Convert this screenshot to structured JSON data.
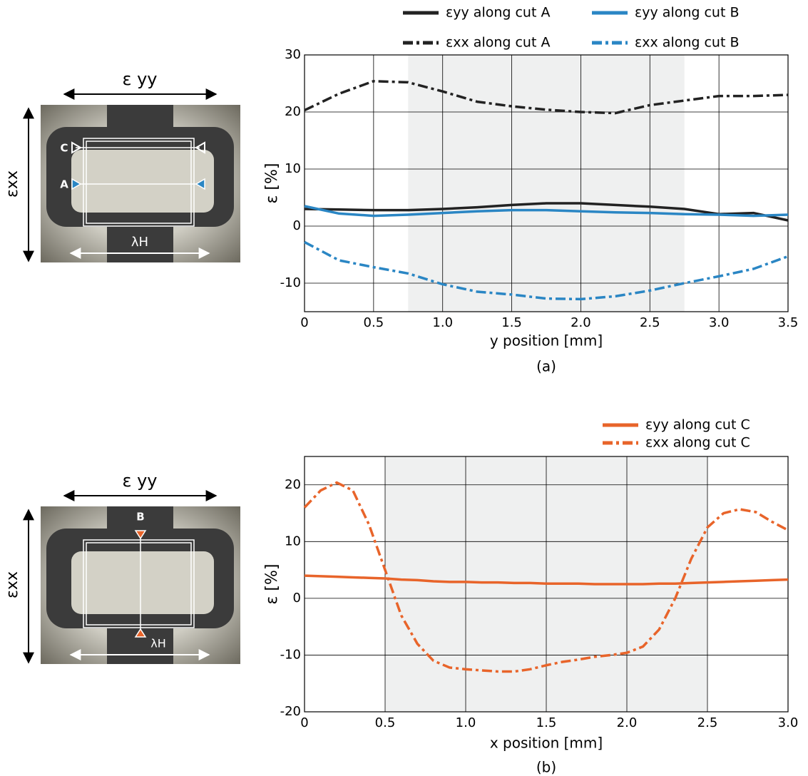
{
  "chart_data": [
    {
      "type": "line",
      "x_label": "y position [mm]",
      "y_label": "ε [%]",
      "caption": "(a)",
      "x": [
        0,
        0.25,
        0.5,
        0.75,
        1,
        1.25,
        1.5,
        1.75,
        2,
        2.25,
        2.5,
        2.75,
        3,
        3.25,
        3.5
      ],
      "xlim": [
        0,
        3.5
      ],
      "xticks": [
        0,
        0.5,
        {
          "value": 1,
          "label": "1.0"
        },
        1.5,
        {
          "value": 2,
          "label": "2.0"
        },
        2.5,
        {
          "value": 3,
          "label": "3.0"
        },
        3.5
      ],
      "ylim": [
        -15,
        30
      ],
      "yticks": [
        -10,
        0,
        10,
        20,
        30
      ],
      "grid": true,
      "shaded": [
        0.75,
        2.75
      ],
      "series": [
        {
          "name": "εyy along cut A",
          "color": "#222222",
          "style": "solid",
          "values": [
            3,
            2.9,
            2.8,
            2.8,
            3.0,
            3.3,
            3.7,
            4.0,
            4.0,
            3.7,
            3.4,
            3.0,
            2.1,
            2.3,
            1.0
          ]
        },
        {
          "name": "εyy along cut B",
          "color": "#2a86c4",
          "style": "solid",
          "values": [
            3.5,
            2.2,
            1.8,
            2.0,
            2.3,
            2.6,
            2.8,
            2.8,
            2.6,
            2.4,
            2.3,
            2.1,
            2.0,
            1.8,
            2.0
          ]
        },
        {
          "name": "εxx along cut A",
          "color": "#222222",
          "style": "dashdot",
          "values": [
            20.3,
            23.2,
            25.4,
            25.2,
            23.6,
            21.8,
            21.0,
            20.4,
            20.0,
            19.8,
            21.2,
            22.0,
            22.8,
            22.8,
            23.0
          ]
        },
        {
          "name": "εxx along cut B",
          "color": "#2a86c4",
          "style": "dashdot",
          "values": [
            -2.8,
            -6.0,
            -7.2,
            -8.3,
            -10.2,
            -11.5,
            -12.0,
            -12.7,
            -12.8,
            -12.3,
            -11.3,
            -10.0,
            -8.8,
            -7.5,
            -5.3
          ]
        }
      ]
    },
    {
      "type": "line",
      "x_label": "x position [mm]",
      "y_label": "ε [%]",
      "caption": "(b)",
      "x": [
        0,
        0.1,
        0.2,
        0.3,
        0.4,
        0.5,
        0.6,
        0.7,
        0.8,
        0.9,
        1,
        1.1,
        1.2,
        1.3,
        1.4,
        1.5,
        1.6,
        1.7,
        1.8,
        1.9,
        2,
        2.1,
        2.2,
        2.3,
        2.4,
        2.5,
        2.6,
        2.7,
        2.8,
        2.9,
        3
      ],
      "xlim": [
        0,
        3
      ],
      "xticks": [
        0,
        0.5,
        {
          "value": 1,
          "label": "1.0"
        },
        1.5,
        {
          "value": 2,
          "label": "2.0"
        },
        2.5,
        {
          "value": 3,
          "label": "3.0"
        }
      ],
      "ylim": [
        -20,
        25
      ],
      "yticks": [
        -20,
        -10,
        0,
        10,
        20
      ],
      "grid": true,
      "shaded": [
        0.5,
        2.5
      ],
      "series": [
        {
          "name": "εyy along cut C",
          "color": "#e8642a",
          "style": "solid",
          "values": [
            4.0,
            3.9,
            3.8,
            3.7,
            3.6,
            3.5,
            3.3,
            3.2,
            3.0,
            2.9,
            2.9,
            2.8,
            2.8,
            2.7,
            2.7,
            2.6,
            2.6,
            2.6,
            2.5,
            2.5,
            2.5,
            2.5,
            2.6,
            2.6,
            2.7,
            2.8,
            2.9,
            3.0,
            3.1,
            3.2,
            3.3
          ]
        },
        {
          "name": "εxx along cut C",
          "color": "#e8642a",
          "style": "dashdot",
          "values": [
            16,
            19,
            20.4,
            19,
            13,
            5,
            -3,
            -8,
            -11,
            -12.2,
            -12.5,
            -12.7,
            -12.9,
            -12.9,
            -12.5,
            -11.8,
            -11.2,
            -10.8,
            -10.3,
            -10,
            -9.6,
            -8.5,
            -5.5,
            0,
            7,
            12.5,
            15,
            15.7,
            15.2,
            13.5,
            12
          ]
        }
      ]
    }
  ],
  "diagrams": [
    {
      "top_label": "ε yy",
      "side_label": "εxx",
      "bottom_label": "λH",
      "markers": [
        "C",
        "A"
      ]
    },
    {
      "top_label": "ε yy",
      "side_label": "εxx",
      "bottom_label": "λH",
      "markers": [
        "B"
      ]
    }
  ]
}
